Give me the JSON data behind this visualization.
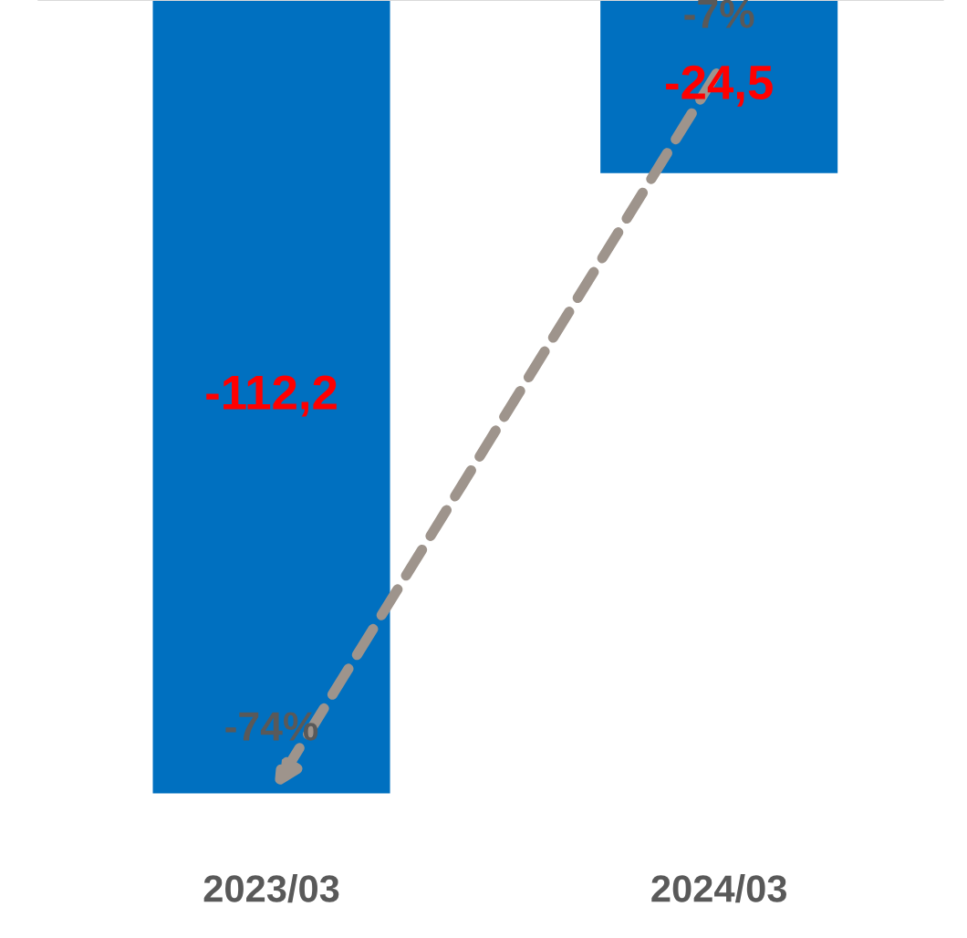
{
  "chart_data": {
    "type": "bar",
    "categories": [
      "2023/03",
      "2024/03"
    ],
    "values": [
      -112.2,
      -24.5
    ],
    "color": "#0070c0",
    "value_labels": [
      "-112,2",
      "-24,5"
    ],
    "tick_labels": "x",
    "grid": false,
    "legend": false,
    "annotations": [
      "-74%",
      "-7%"
    ]
  }
}
